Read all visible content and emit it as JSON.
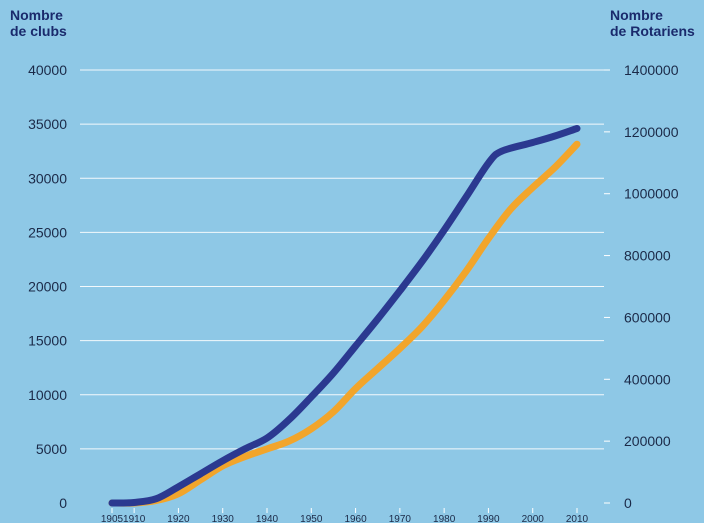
{
  "chart_data": {
    "type": "line",
    "left_axis_title": [
      "Nombre",
      "de clubs"
    ],
    "right_axis_title": [
      "Nombre",
      "de Rotariens"
    ],
    "xlim": [
      1905,
      2010
    ],
    "x_ticks": [
      1905,
      1910,
      1920,
      1930,
      1940,
      1950,
      1960,
      1970,
      1980,
      1990,
      2000,
      2010
    ],
    "left_ylim": [
      0,
      40000
    ],
    "left_ticks": [
      0,
      5000,
      10000,
      15000,
      20000,
      25000,
      30000,
      35000,
      40000
    ],
    "right_ylim": [
      0,
      1400000
    ],
    "right_ticks": [
      0,
      200000,
      400000,
      600000,
      800000,
      1000000,
      1200000,
      1400000
    ],
    "grid": true,
    "series": [
      {
        "key": "clubs",
        "color": "#2b3990",
        "axis": "left",
        "x": [
          1905,
          1910,
          1915,
          1920,
          1925,
          1930,
          1935,
          1940,
          1945,
          1950,
          1955,
          1960,
          1965,
          1970,
          1975,
          1980,
          1985,
          1990,
          1993,
          2000,
          2005,
          2010
        ],
        "values": [
          0,
          50,
          400,
          1500,
          2700,
          3900,
          5000,
          6000,
          7700,
          9800,
          12000,
          14500,
          17000,
          19600,
          22300,
          25200,
          28300,
          31400,
          32500,
          33300,
          33900,
          34600
        ]
      },
      {
        "key": "rotarians",
        "color": "#f2a52b",
        "axis": "right",
        "x": [
          1905,
          1910,
          1915,
          1920,
          1925,
          1930,
          1935,
          1940,
          1945,
          1950,
          1955,
          1960,
          1965,
          1970,
          1975,
          1980,
          1985,
          1990,
          1995,
          2000,
          2005,
          2010
        ],
        "values": [
          0,
          0,
          8000,
          30000,
          75000,
          120000,
          150000,
          175000,
          200000,
          240000,
          295000,
          370000,
          435000,
          500000,
          570000,
          655000,
          750000,
          855000,
          950000,
          1020000,
          1085000,
          1160000
        ]
      }
    ]
  }
}
